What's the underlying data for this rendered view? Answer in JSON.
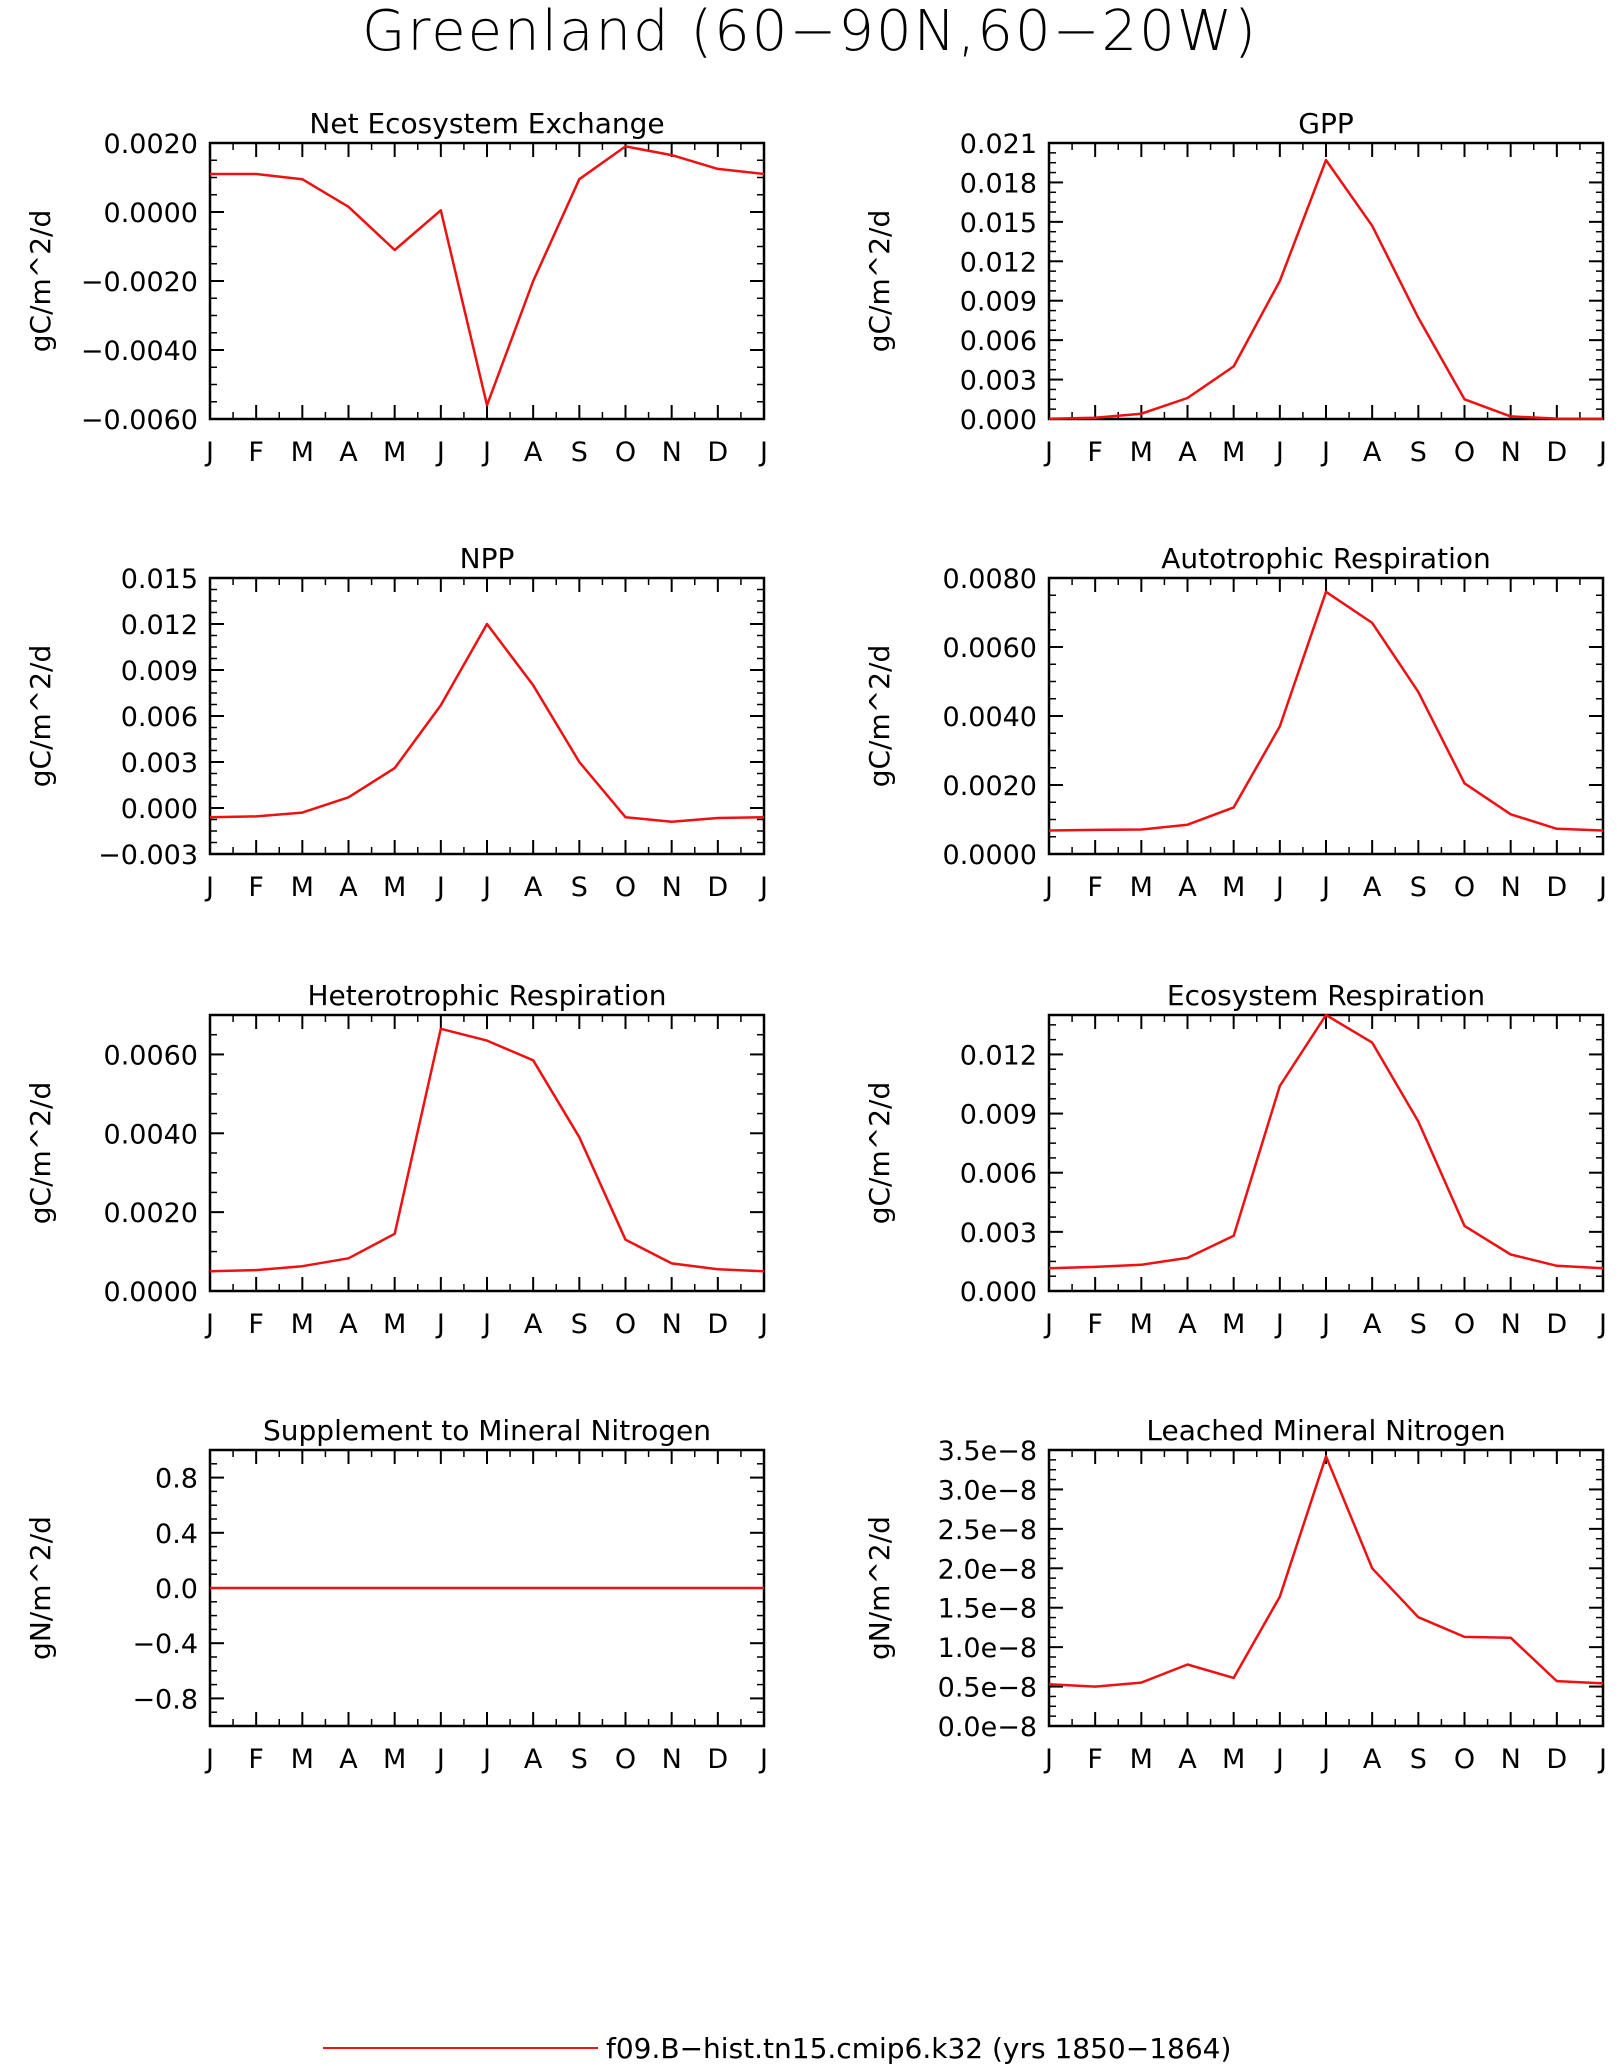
{
  "figure": {
    "title": "Greenland (60−90N,60−20W)",
    "legend": {
      "label": "f09.B−hist.tn15.cmip6.k32 (yrs 1850−1864)",
      "color": "#ee1111"
    }
  },
  "chart_data": [
    {
      "type": "line",
      "title": "Net Ecosystem Exchange",
      "ylabel": "gC/m^2/d",
      "x": [
        "J",
        "F",
        "M",
        "A",
        "M",
        "J",
        "J",
        "A",
        "S",
        "O",
        "N",
        "D",
        "J"
      ],
      "ylim": [
        -0.006,
        0.002
      ],
      "yticks": [
        0.002,
        0,
        -0.002,
        -0.004,
        -0.006
      ],
      "ytick_labels": [
        "0.0020",
        "0.0000",
        "−0.0020",
        "−0.0040",
        "−0.0060"
      ],
      "series": [
        {
          "color": "#ee1111",
          "values": [
            0.0011,
            0.0011,
            0.00095,
            0.00015,
            -0.0011,
            5e-05,
            -0.0056,
            -0.002,
            0.00095,
            0.0019,
            0.00165,
            0.00125,
            0.0011
          ]
        }
      ]
    },
    {
      "type": "line",
      "title": "GPP",
      "ylabel": "gC/m^2/d",
      "x": [
        "J",
        "F",
        "M",
        "A",
        "M",
        "J",
        "J",
        "A",
        "S",
        "O",
        "N",
        "D",
        "J"
      ],
      "ylim": [
        0,
        0.021
      ],
      "yticks": [
        0.021,
        0.018,
        0.015,
        0.012,
        0.009,
        0.006,
        0.003,
        0
      ],
      "ytick_labels": [
        "0.021",
        "0.018",
        "0.015",
        "0.012",
        "0.009",
        "0.006",
        "0.003",
        "0.000"
      ],
      "series": [
        {
          "color": "#ee1111",
          "values": [
            2e-05,
            0.0001,
            0.0004,
            0.0016,
            0.004,
            0.0105,
            0.0197,
            0.0147,
            0.0077,
            0.0015,
            0.0002,
            3e-05,
            2e-05
          ]
        }
      ]
    },
    {
      "type": "line",
      "title": "NPP",
      "ylabel": "gC/m^2/d",
      "x": [
        "J",
        "F",
        "M",
        "A",
        "M",
        "J",
        "J",
        "A",
        "S",
        "O",
        "N",
        "D",
        "J"
      ],
      "ylim": [
        -0.003,
        0.015
      ],
      "yticks": [
        0.015,
        0.012,
        0.009,
        0.006,
        0.003,
        0,
        -0.003
      ],
      "ytick_labels": [
        "0.015",
        "0.012",
        "0.009",
        "0.006",
        "0.003",
        "0.000",
        "−0.003"
      ],
      "series": [
        {
          "color": "#ee1111",
          "values": [
            -0.0006,
            -0.00055,
            -0.0003,
            0.0007,
            0.0026,
            0.0067,
            0.012,
            0.008,
            0.003,
            -0.0006,
            -0.0009,
            -0.00065,
            -0.0006
          ]
        }
      ]
    },
    {
      "type": "line",
      "title": "Autotrophic Respiration",
      "ylabel": "gC/m^2/d",
      "x": [
        "J",
        "F",
        "M",
        "A",
        "M",
        "J",
        "J",
        "A",
        "S",
        "O",
        "N",
        "D",
        "J"
      ],
      "ylim": [
        0,
        0.008
      ],
      "yticks": [
        0.008,
        0.006,
        0.004,
        0.002,
        0
      ],
      "ytick_labels": [
        "0.0080",
        "0.0060",
        "0.0040",
        "0.0020",
        "0.0000"
      ],
      "series": [
        {
          "color": "#ee1111",
          "values": [
            0.00068,
            0.0007,
            0.00071,
            0.00085,
            0.00135,
            0.0037,
            0.0076,
            0.0067,
            0.0047,
            0.00205,
            0.00115,
            0.00073,
            0.00068
          ]
        }
      ]
    },
    {
      "type": "line",
      "title": "Heterotrophic Respiration",
      "ylabel": "gC/m^2/d",
      "x": [
        "J",
        "F",
        "M",
        "A",
        "M",
        "J",
        "J",
        "A",
        "S",
        "O",
        "N",
        "D",
        "J"
      ],
      "ylim": [
        0,
        0.007
      ],
      "yticks": [
        0.006,
        0.004,
        0.002,
        0
      ],
      "ytick_labels": [
        "0.0060",
        "0.0040",
        "0.0020",
        "0.0000"
      ],
      "series": [
        {
          "color": "#ee1111",
          "values": [
            0.0005,
            0.00053,
            0.00063,
            0.00083,
            0.00145,
            0.00665,
            0.00635,
            0.00585,
            0.0039,
            0.0013,
            0.0007,
            0.00055,
            0.0005
          ]
        }
      ]
    },
    {
      "type": "line",
      "title": "Ecosystem Respiration",
      "ylabel": "gC/m^2/d",
      "x": [
        "J",
        "F",
        "M",
        "A",
        "M",
        "J",
        "J",
        "A",
        "S",
        "O",
        "N",
        "D",
        "J"
      ],
      "ylim": [
        0,
        0.014
      ],
      "yticks": [
        0.012,
        0.009,
        0.006,
        0.003,
        0
      ],
      "ytick_labels": [
        "0.012",
        "0.009",
        "0.006",
        "0.003",
        "0.000"
      ],
      "series": [
        {
          "color": "#ee1111",
          "values": [
            0.00115,
            0.00122,
            0.00133,
            0.00168,
            0.0028,
            0.0104,
            0.014,
            0.0126,
            0.0086,
            0.0033,
            0.00185,
            0.00128,
            0.00115
          ]
        }
      ]
    },
    {
      "type": "line",
      "title": "Supplement to Mineral Nitrogen",
      "ylabel": "gN/m^2/d",
      "x": [
        "J",
        "F",
        "M",
        "A",
        "M",
        "J",
        "J",
        "A",
        "S",
        "O",
        "N",
        "D",
        "J"
      ],
      "ylim": [
        -1,
        1
      ],
      "yticks": [
        0.8,
        0.4,
        0,
        -0.4,
        -0.8
      ],
      "ytick_labels": [
        "0.8",
        "0.4",
        "0.0",
        "−0.4",
        "−0.8"
      ],
      "series": [
        {
          "color": "#ee1111",
          "values": [
            0,
            0,
            0,
            0,
            0,
            0,
            0,
            0,
            0,
            0,
            0,
            0,
            0
          ]
        }
      ]
    },
    {
      "type": "line",
      "title": "Leached Mineral Nitrogen",
      "ylabel": "gN/m^2/d",
      "x": [
        "J",
        "F",
        "M",
        "A",
        "M",
        "J",
        "J",
        "A",
        "S",
        "O",
        "N",
        "D",
        "J"
      ],
      "ylim": [
        0,
        3.5e-08
      ],
      "yticks": [
        3.5e-08,
        3e-08,
        2.5e-08,
        2e-08,
        1.5e-08,
        1e-08,
        5e-09,
        0
      ],
      "ytick_labels": [
        "3.5e−8",
        "3.0e−8",
        "2.5e−8",
        "2.0e−8",
        "1.5e−8",
        "1.0e−8",
        "0.5e−8",
        "0.0e−8"
      ],
      "series": [
        {
          "color": "#ee1111",
          "values": [
            5.3e-09,
            5e-09,
            5.5e-09,
            7.8e-09,
            6.1e-09,
            1.64e-08,
            3.42e-08,
            2e-08,
            1.38e-08,
            1.13e-08,
            1.12e-08,
            5.7e-09,
            5.4e-09
          ]
        }
      ]
    }
  ]
}
